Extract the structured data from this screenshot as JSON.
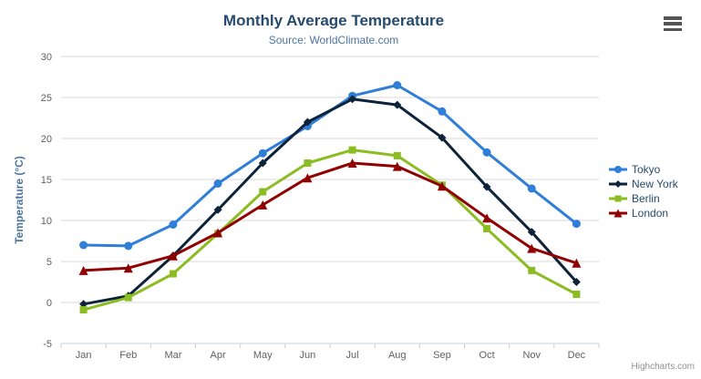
{
  "chart_data": {
    "type": "line",
    "title": "Monthly Average Temperature",
    "subtitle": "Source: WorldClimate.com",
    "xlabel": "",
    "ylabel": "Temperature (°C)",
    "ylim": [
      -5,
      30
    ],
    "yticks": [
      -5,
      0,
      5,
      10,
      15,
      20,
      25,
      30
    ],
    "grid": true,
    "legend_position": "right",
    "credits": "Highcharts.com",
    "categories": [
      "Jan",
      "Feb",
      "Mar",
      "Apr",
      "May",
      "Jun",
      "Jul",
      "Aug",
      "Sep",
      "Oct",
      "Nov",
      "Dec"
    ],
    "series": [
      {
        "name": "Tokyo",
        "color": "#2f7ed8",
        "marker": "circle",
        "values": [
          7.0,
          6.9,
          9.5,
          14.5,
          18.2,
          21.5,
          25.2,
          26.5,
          23.3,
          18.3,
          13.9,
          9.6
        ]
      },
      {
        "name": "New York",
        "color": "#0d233a",
        "marker": "diamond",
        "values": [
          -0.2,
          0.8,
          5.7,
          11.3,
          17.0,
          22.0,
          24.8,
          24.1,
          20.1,
          14.1,
          8.6,
          2.5
        ]
      },
      {
        "name": "Berlin",
        "color": "#8bbc21",
        "marker": "square",
        "values": [
          -0.9,
          0.6,
          3.5,
          8.4,
          13.5,
          17.0,
          18.6,
          17.9,
          14.3,
          9.0,
          3.9,
          1.0
        ]
      },
      {
        "name": "London",
        "color": "#910000",
        "marker": "triangle",
        "values": [
          3.9,
          4.2,
          5.7,
          8.5,
          11.9,
          15.2,
          17.0,
          16.6,
          14.2,
          10.3,
          6.6,
          4.8
        ]
      }
    ],
    "colors": {
      "grid": "#d8d8d8",
      "axis_line": "#c0d0e0",
      "tick_label": "#606060",
      "title": "#274b6d",
      "subtitle": "#4d759e",
      "axis_title": "#4d759e",
      "legend_text": "#274b6d",
      "credits": "#909090",
      "menu_icon": "#555555"
    }
  }
}
